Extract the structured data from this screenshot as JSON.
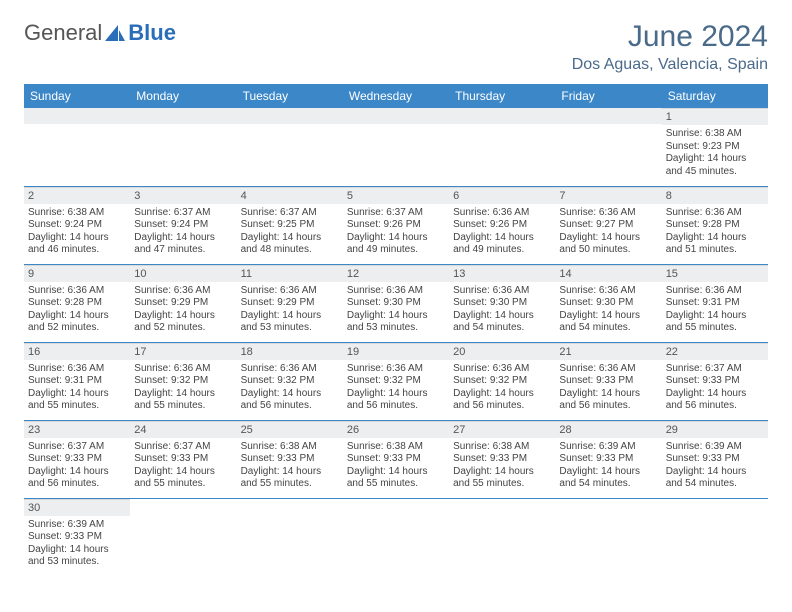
{
  "brand": {
    "general": "General",
    "blue": "Blue"
  },
  "title": "June 2024",
  "location": "Dos Aguas, Valencia, Spain",
  "colors": {
    "header_bg": "#3b87c8",
    "header_text": "#ffffff",
    "title_color": "#4a6a8a",
    "row_border": "#3b87c8",
    "daynum_bg": "#eceeef"
  },
  "weekdays": [
    "Sunday",
    "Monday",
    "Tuesday",
    "Wednesday",
    "Thursday",
    "Friday",
    "Saturday"
  ],
  "weeks": [
    [
      null,
      null,
      null,
      null,
      null,
      null,
      {
        "n": "1",
        "sr": "6:38 AM",
        "ss": "9:23 PM",
        "dl": "14 hours and 45 minutes."
      }
    ],
    [
      {
        "n": "2",
        "sr": "6:38 AM",
        "ss": "9:24 PM",
        "dl": "14 hours and 46 minutes."
      },
      {
        "n": "3",
        "sr": "6:37 AM",
        "ss": "9:24 PM",
        "dl": "14 hours and 47 minutes."
      },
      {
        "n": "4",
        "sr": "6:37 AM",
        "ss": "9:25 PM",
        "dl": "14 hours and 48 minutes."
      },
      {
        "n": "5",
        "sr": "6:37 AM",
        "ss": "9:26 PM",
        "dl": "14 hours and 49 minutes."
      },
      {
        "n": "6",
        "sr": "6:36 AM",
        "ss": "9:26 PM",
        "dl": "14 hours and 49 minutes."
      },
      {
        "n": "7",
        "sr": "6:36 AM",
        "ss": "9:27 PM",
        "dl": "14 hours and 50 minutes."
      },
      {
        "n": "8",
        "sr": "6:36 AM",
        "ss": "9:28 PM",
        "dl": "14 hours and 51 minutes."
      }
    ],
    [
      {
        "n": "9",
        "sr": "6:36 AM",
        "ss": "9:28 PM",
        "dl": "14 hours and 52 minutes."
      },
      {
        "n": "10",
        "sr": "6:36 AM",
        "ss": "9:29 PM",
        "dl": "14 hours and 52 minutes."
      },
      {
        "n": "11",
        "sr": "6:36 AM",
        "ss": "9:29 PM",
        "dl": "14 hours and 53 minutes."
      },
      {
        "n": "12",
        "sr": "6:36 AM",
        "ss": "9:30 PM",
        "dl": "14 hours and 53 minutes."
      },
      {
        "n": "13",
        "sr": "6:36 AM",
        "ss": "9:30 PM",
        "dl": "14 hours and 54 minutes."
      },
      {
        "n": "14",
        "sr": "6:36 AM",
        "ss": "9:30 PM",
        "dl": "14 hours and 54 minutes."
      },
      {
        "n": "15",
        "sr": "6:36 AM",
        "ss": "9:31 PM",
        "dl": "14 hours and 55 minutes."
      }
    ],
    [
      {
        "n": "16",
        "sr": "6:36 AM",
        "ss": "9:31 PM",
        "dl": "14 hours and 55 minutes."
      },
      {
        "n": "17",
        "sr": "6:36 AM",
        "ss": "9:32 PM",
        "dl": "14 hours and 55 minutes."
      },
      {
        "n": "18",
        "sr": "6:36 AM",
        "ss": "9:32 PM",
        "dl": "14 hours and 56 minutes."
      },
      {
        "n": "19",
        "sr": "6:36 AM",
        "ss": "9:32 PM",
        "dl": "14 hours and 56 minutes."
      },
      {
        "n": "20",
        "sr": "6:36 AM",
        "ss": "9:32 PM",
        "dl": "14 hours and 56 minutes."
      },
      {
        "n": "21",
        "sr": "6:36 AM",
        "ss": "9:33 PM",
        "dl": "14 hours and 56 minutes."
      },
      {
        "n": "22",
        "sr": "6:37 AM",
        "ss": "9:33 PM",
        "dl": "14 hours and 56 minutes."
      }
    ],
    [
      {
        "n": "23",
        "sr": "6:37 AM",
        "ss": "9:33 PM",
        "dl": "14 hours and 56 minutes."
      },
      {
        "n": "24",
        "sr": "6:37 AM",
        "ss": "9:33 PM",
        "dl": "14 hours and 55 minutes."
      },
      {
        "n": "25",
        "sr": "6:38 AM",
        "ss": "9:33 PM",
        "dl": "14 hours and 55 minutes."
      },
      {
        "n": "26",
        "sr": "6:38 AM",
        "ss": "9:33 PM",
        "dl": "14 hours and 55 minutes."
      },
      {
        "n": "27",
        "sr": "6:38 AM",
        "ss": "9:33 PM",
        "dl": "14 hours and 55 minutes."
      },
      {
        "n": "28",
        "sr": "6:39 AM",
        "ss": "9:33 PM",
        "dl": "14 hours and 54 minutes."
      },
      {
        "n": "29",
        "sr": "6:39 AM",
        "ss": "9:33 PM",
        "dl": "14 hours and 54 minutes."
      }
    ],
    [
      {
        "n": "30",
        "sr": "6:39 AM",
        "ss": "9:33 PM",
        "dl": "14 hours and 53 minutes."
      },
      null,
      null,
      null,
      null,
      null,
      null
    ]
  ],
  "labels": {
    "sunrise": "Sunrise:",
    "sunset": "Sunset:",
    "daylight": "Daylight:"
  }
}
